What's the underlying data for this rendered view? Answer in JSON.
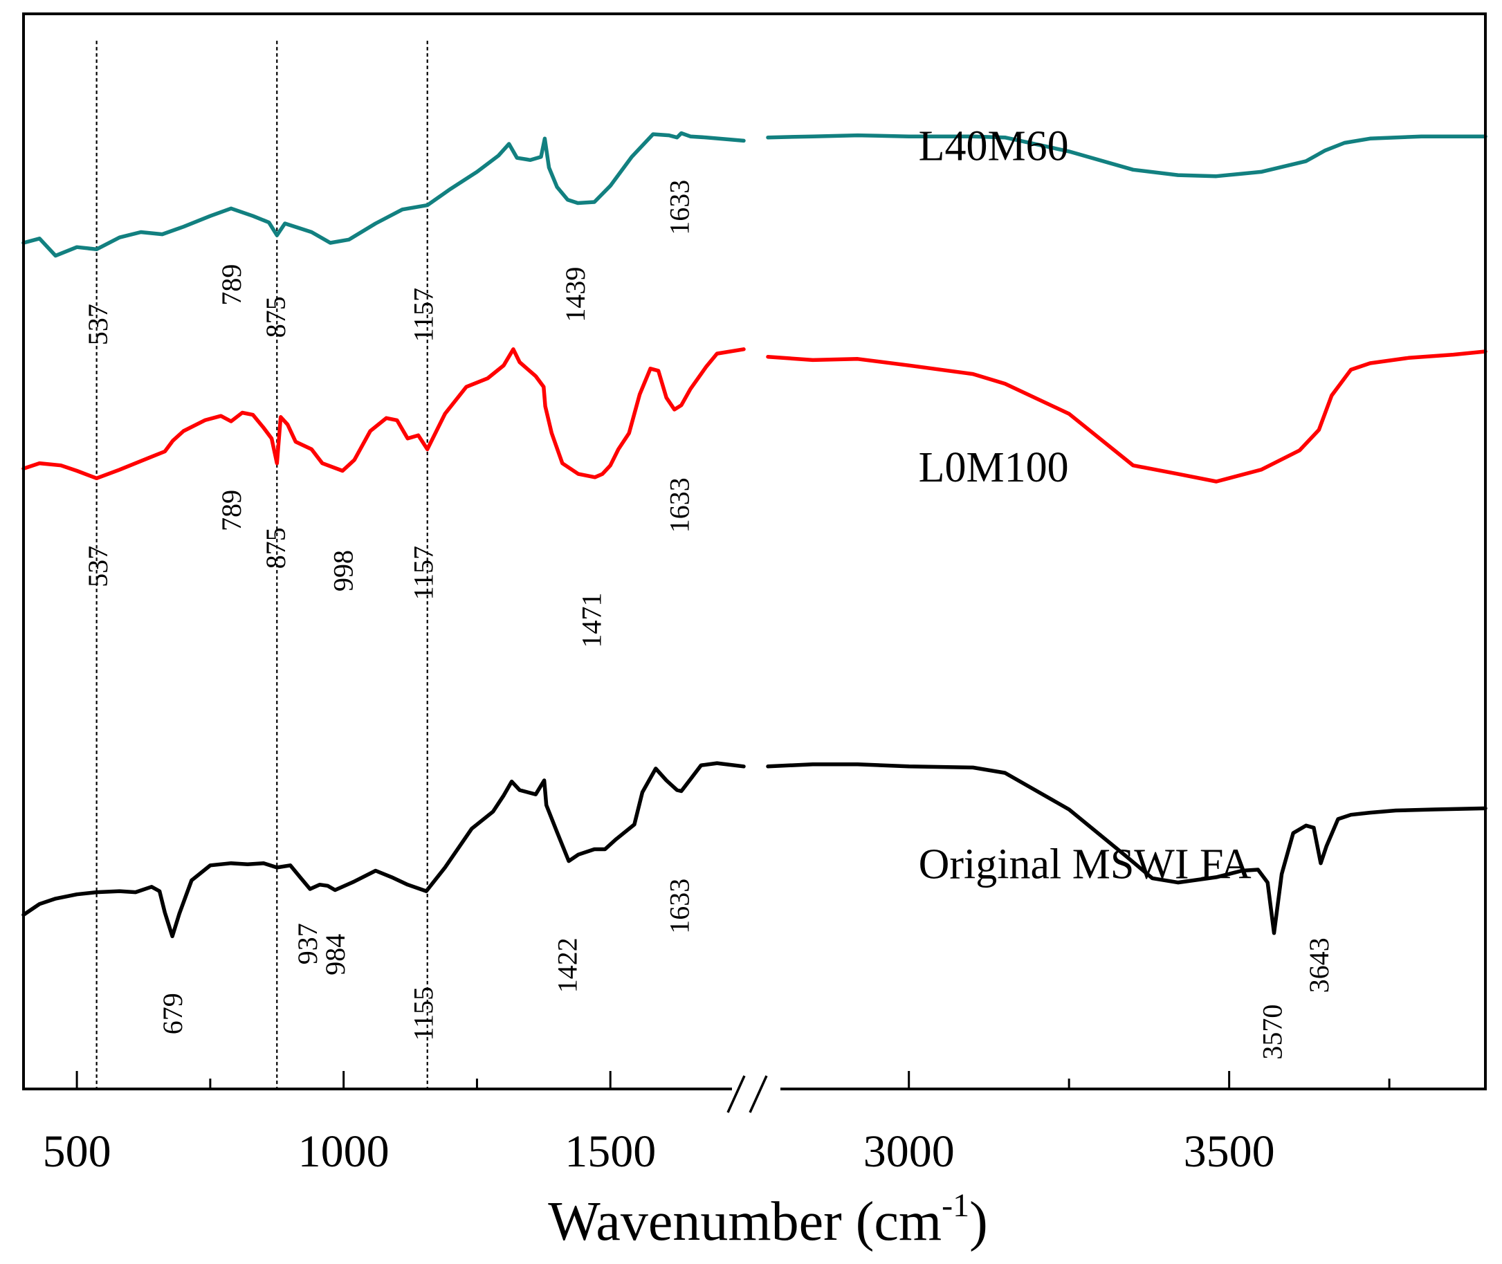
{
  "chart_data": {
    "type": "line",
    "title": "",
    "xlabel": "Wavenumber (cm",
    "xlabel_sup": "-1",
    "xlabel_close": ")",
    "ylabel": "",
    "x_axis_break": true,
    "x_segments": [
      {
        "range": [
          400,
          1750
        ],
        "ticks": [
          500,
          1000,
          1500
        ],
        "minor_ticks": [
          750,
          1250
        ]
      },
      {
        "range": [
          2780,
          3900
        ],
        "ticks": [
          3000,
          3500
        ],
        "minor_ticks": [
          2750,
          3250,
          3750
        ]
      }
    ],
    "y_range": [
      0,
      100
    ],
    "reference_lines": [
      537,
      875,
      1157
    ],
    "series": [
      {
        "name": "L40M60",
        "label": "L40M60",
        "color": "#128080",
        "label_x": 3015,
        "label_y": 86.4,
        "points": [
          [
            400,
            78.7
          ],
          [
            430,
            79.1
          ],
          [
            460,
            77.5
          ],
          [
            500,
            78.3
          ],
          [
            537,
            78.1
          ],
          [
            580,
            79.2
          ],
          [
            620,
            79.7
          ],
          [
            660,
            79.5
          ],
          [
            700,
            80.2
          ],
          [
            750,
            81.2
          ],
          [
            789,
            81.9
          ],
          [
            830,
            81.2
          ],
          [
            860,
            80.6
          ],
          [
            875,
            79.4
          ],
          [
            890,
            80.5
          ],
          [
            940,
            79.7
          ],
          [
            975,
            78.7
          ],
          [
            1010,
            79.0
          ],
          [
            1060,
            80.5
          ],
          [
            1110,
            81.8
          ],
          [
            1157,
            82.2
          ],
          [
            1200,
            83.7
          ],
          [
            1250,
            85.3
          ],
          [
            1290,
            86.8
          ],
          [
            1310,
            87.9
          ],
          [
            1325,
            86.6
          ],
          [
            1350,
            86.4
          ],
          [
            1370,
            86.7
          ],
          [
            1377,
            88.4
          ],
          [
            1385,
            85.7
          ],
          [
            1400,
            83.9
          ],
          [
            1420,
            82.7
          ],
          [
            1439,
            82.4
          ],
          [
            1470,
            82.5
          ],
          [
            1500,
            84.0
          ],
          [
            1540,
            86.7
          ],
          [
            1580,
            88.8
          ],
          [
            1610,
            88.7
          ],
          [
            1625,
            88.5
          ],
          [
            1633,
            88.9
          ],
          [
            1650,
            88.6
          ],
          [
            1680,
            88.5
          ],
          [
            1750,
            88.2
          ],
          [
            2780,
            88.5
          ],
          [
            2850,
            88.6
          ],
          [
            2920,
            88.7
          ],
          [
            3000,
            88.6
          ],
          [
            3100,
            88.6
          ],
          [
            3150,
            88.5
          ],
          [
            3250,
            87.2
          ],
          [
            3350,
            85.5
          ],
          [
            3420,
            85.0
          ],
          [
            3480,
            84.9
          ],
          [
            3550,
            85.3
          ],
          [
            3620,
            86.3
          ],
          [
            3650,
            87.3
          ],
          [
            3680,
            88.0
          ],
          [
            3720,
            88.4
          ],
          [
            3800,
            88.6
          ],
          [
            3900,
            88.6
          ]
        ]
      },
      {
        "name": "L0M100",
        "label": "L0M100",
        "color": "#ff0000",
        "label_x": 3015,
        "label_y": 56.5,
        "points": [
          [
            400,
            57.7
          ],
          [
            430,
            58.2
          ],
          [
            470,
            58.0
          ],
          [
            500,
            57.5
          ],
          [
            537,
            56.8
          ],
          [
            580,
            57.6
          ],
          [
            610,
            58.2
          ],
          [
            640,
            58.8
          ],
          [
            665,
            59.3
          ],
          [
            680,
            60.3
          ],
          [
            700,
            61.2
          ],
          [
            740,
            62.2
          ],
          [
            770,
            62.6
          ],
          [
            789,
            62.1
          ],
          [
            810,
            62.9
          ],
          [
            830,
            62.7
          ],
          [
            850,
            61.5
          ],
          [
            865,
            60.5
          ],
          [
            875,
            58.2
          ],
          [
            882,
            62.5
          ],
          [
            895,
            61.8
          ],
          [
            910,
            60.2
          ],
          [
            940,
            59.5
          ],
          [
            960,
            58.2
          ],
          [
            998,
            57.5
          ],
          [
            1020,
            58.5
          ],
          [
            1050,
            61.2
          ],
          [
            1080,
            62.4
          ],
          [
            1100,
            62.2
          ],
          [
            1120,
            60.5
          ],
          [
            1140,
            60.8
          ],
          [
            1157,
            59.5
          ],
          [
            1190,
            62.8
          ],
          [
            1230,
            65.3
          ],
          [
            1270,
            66.1
          ],
          [
            1300,
            67.3
          ],
          [
            1318,
            68.8
          ],
          [
            1330,
            67.6
          ],
          [
            1360,
            66.3
          ],
          [
            1375,
            65.3
          ],
          [
            1378,
            63.5
          ],
          [
            1390,
            61.0
          ],
          [
            1410,
            58.2
          ],
          [
            1440,
            57.2
          ],
          [
            1471,
            56.9
          ],
          [
            1485,
            57.2
          ],
          [
            1500,
            58.0
          ],
          [
            1515,
            59.5
          ],
          [
            1535,
            61.0
          ],
          [
            1555,
            64.6
          ],
          [
            1575,
            67.0
          ],
          [
            1590,
            66.8
          ],
          [
            1605,
            64.3
          ],
          [
            1620,
            63.2
          ],
          [
            1633,
            63.6
          ],
          [
            1650,
            65.1
          ],
          [
            1680,
            67.2
          ],
          [
            1700,
            68.4
          ],
          [
            1750,
            68.8
          ],
          [
            2780,
            68.1
          ],
          [
            2850,
            67.8
          ],
          [
            2920,
            67.9
          ],
          [
            3000,
            67.3
          ],
          [
            3100,
            66.5
          ],
          [
            3150,
            65.6
          ],
          [
            3250,
            62.8
          ],
          [
            3350,
            58.0
          ],
          [
            3420,
            57.2
          ],
          [
            3480,
            56.5
          ],
          [
            3550,
            57.6
          ],
          [
            3610,
            59.4
          ],
          [
            3640,
            61.3
          ],
          [
            3660,
            64.5
          ],
          [
            3690,
            66.9
          ],
          [
            3720,
            67.5
          ],
          [
            3780,
            68.0
          ],
          [
            3850,
            68.3
          ],
          [
            3900,
            68.6
          ]
        ]
      },
      {
        "name": "Original MSWI FA",
        "label": "Original MSWI FA",
        "color": "#000000",
        "label_x": 3015,
        "label_y": 19.6,
        "points": [
          [
            400,
            16.2
          ],
          [
            430,
            17.2
          ],
          [
            460,
            17.7
          ],
          [
            500,
            18.1
          ],
          [
            537,
            18.3
          ],
          [
            580,
            18.4
          ],
          [
            610,
            18.3
          ],
          [
            640,
            18.8
          ],
          [
            655,
            18.4
          ],
          [
            665,
            16.4
          ],
          [
            679,
            14.2
          ],
          [
            692,
            16.3
          ],
          [
            715,
            19.4
          ],
          [
            750,
            20.8
          ],
          [
            789,
            21.0
          ],
          [
            820,
            20.9
          ],
          [
            850,
            21.0
          ],
          [
            875,
            20.6
          ],
          [
            900,
            20.8
          ],
          [
            920,
            19.6
          ],
          [
            937,
            18.6
          ],
          [
            955,
            19.0
          ],
          [
            970,
            18.9
          ],
          [
            984,
            18.5
          ],
          [
            1020,
            19.3
          ],
          [
            1060,
            20.3
          ],
          [
            1090,
            19.7
          ],
          [
            1120,
            19.0
          ],
          [
            1155,
            18.4
          ],
          [
            1190,
            20.6
          ],
          [
            1240,
            24.2
          ],
          [
            1280,
            25.8
          ],
          [
            1300,
            27.3
          ],
          [
            1315,
            28.6
          ],
          [
            1330,
            27.8
          ],
          [
            1360,
            27.4
          ],
          [
            1376,
            28.7
          ],
          [
            1380,
            26.4
          ],
          [
            1400,
            23.9
          ],
          [
            1422,
            21.2
          ],
          [
            1440,
            21.8
          ],
          [
            1470,
            22.3
          ],
          [
            1490,
            22.3
          ],
          [
            1510,
            23.2
          ],
          [
            1530,
            24.0
          ],
          [
            1545,
            24.6
          ],
          [
            1560,
            27.6
          ],
          [
            1585,
            29.8
          ],
          [
            1605,
            28.7
          ],
          [
            1625,
            27.8
          ],
          [
            1633,
            27.7
          ],
          [
            1650,
            28.8
          ],
          [
            1670,
            30.1
          ],
          [
            1700,
            30.3
          ],
          [
            1750,
            30.0
          ],
          [
            2780,
            30.0
          ],
          [
            2850,
            30.2
          ],
          [
            2920,
            30.2
          ],
          [
            3000,
            30.0
          ],
          [
            3100,
            29.9
          ],
          [
            3150,
            29.4
          ],
          [
            3250,
            26.0
          ],
          [
            3340,
            21.6
          ],
          [
            3380,
            19.6
          ],
          [
            3420,
            19.2
          ],
          [
            3480,
            19.7
          ],
          [
            3520,
            20.3
          ],
          [
            3545,
            20.4
          ],
          [
            3560,
            19.2
          ],
          [
            3570,
            14.5
          ],
          [
            3582,
            20.0
          ],
          [
            3600,
            23.8
          ],
          [
            3620,
            24.5
          ],
          [
            3632,
            24.3
          ],
          [
            3643,
            21.0
          ],
          [
            3652,
            22.6
          ],
          [
            3670,
            25.1
          ],
          [
            3690,
            25.5
          ],
          [
            3720,
            25.7
          ],
          [
            3760,
            25.9
          ],
          [
            3820,
            26.0
          ],
          [
            3900,
            26.1
          ]
        ]
      }
    ],
    "peak_labels": [
      {
        "text": "537",
        "x": 545,
        "y": 71.1
      },
      {
        "text": "789",
        "x": 795,
        "y": 74.8
      },
      {
        "text": "875",
        "x": 878,
        "y": 71.8
      },
      {
        "text": "1157",
        "x": 1155,
        "y": 72.0
      },
      {
        "text": "1439",
        "x": 1440,
        "y": 73.9
      },
      {
        "text": "1633",
        "x": 1635,
        "y": 82.0
      },
      {
        "text": "537",
        "x": 545,
        "y": 48.6
      },
      {
        "text": "789",
        "x": 795,
        "y": 53.8
      },
      {
        "text": "875",
        "x": 878,
        "y": 50.3
      },
      {
        "text": "998",
        "x": 1005,
        "y": 48.2
      },
      {
        "text": "1157",
        "x": 1155,
        "y": 48.0
      },
      {
        "text": "1471",
        "x": 1470,
        "y": 43.6
      },
      {
        "text": "1633",
        "x": 1635,
        "y": 54.3
      },
      {
        "text": "679",
        "x": 685,
        "y": 7.0
      },
      {
        "text": "937",
        "x": 938,
        "y": 13.5
      },
      {
        "text": "984",
        "x": 990,
        "y": 12.5
      },
      {
        "text": "1155",
        "x": 1155,
        "y": 7.0
      },
      {
        "text": "1422",
        "x": 1425,
        "y": 11.5
      },
      {
        "text": "1633",
        "x": 1635,
        "y": 17.0
      },
      {
        "text": "3570",
        "x": 3572,
        "y": 5.3
      },
      {
        "text": "3643",
        "x": 3645,
        "y": 11.5
      }
    ]
  }
}
